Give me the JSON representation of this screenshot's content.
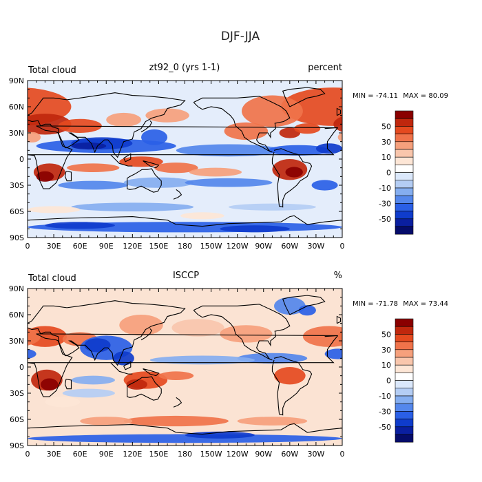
{
  "page_title": "DJF-JJA",
  "chart_data": [
    {
      "type": "heatmap",
      "title_left": "Total cloud",
      "title_center": "zt92_0 (yrs 1-1)",
      "title_right": "percent",
      "stats": {
        "min_label": "MIN =",
        "min": "-74.11",
        "max_label": "MAX =",
        "max": "80.09"
      },
      "x_ticks": [
        "0",
        "30E",
        "60E",
        "90E",
        "120E",
        "150E",
        "180",
        "150W",
        "120W",
        "90W",
        "60W",
        "30W",
        "0"
      ],
      "y_ticks": [
        "90N",
        "60N",
        "30N",
        "0",
        "30S",
        "60S",
        "90S"
      ],
      "colorbar": {
        "levels": [
          "50",
          "30",
          "10",
          "0",
          "-10",
          "-30",
          "-50"
        ],
        "colors": [
          "#8a0000",
          "#c0270d",
          "#e54a1f",
          "#f0734a",
          "#f6a07c",
          "#f9c6ac",
          "#fde6d6",
          "#ffffff",
          "#dbe8fb",
          "#b4cdf4",
          "#85aef0",
          "#5487ec",
          "#2a5fe6",
          "#0f3ccc",
          "#0a1fa0",
          "#050c6a"
        ]
      }
    },
    {
      "type": "heatmap",
      "title_left": "Total cloud",
      "title_center": "ISCCP",
      "title_right": "%",
      "stats": {
        "min_label": "MIN =",
        "min": "-71.78",
        "max_label": "MAX =",
        "max": "73.44"
      },
      "x_ticks": [
        "0",
        "30E",
        "60E",
        "90E",
        "120E",
        "150E",
        "180",
        "150W",
        "120W",
        "90W",
        "60W",
        "30W",
        "0"
      ],
      "y_ticks": [
        "90N",
        "60N",
        "30N",
        "0",
        "30S",
        "60S",
        "90S"
      ],
      "colorbar": {
        "levels": [
          "50",
          "30",
          "10",
          "0",
          "-10",
          "-30",
          "-50"
        ],
        "colors": [
          "#8a0000",
          "#c0270d",
          "#e54a1f",
          "#f0734a",
          "#f6a07c",
          "#f9c6ac",
          "#fde6d6",
          "#ffffff",
          "#dbe8fb",
          "#b4cdf4",
          "#85aef0",
          "#5487ec",
          "#2a5fe6",
          "#0f3ccc",
          "#0a1fa0",
          "#050c6a"
        ]
      }
    }
  ]
}
